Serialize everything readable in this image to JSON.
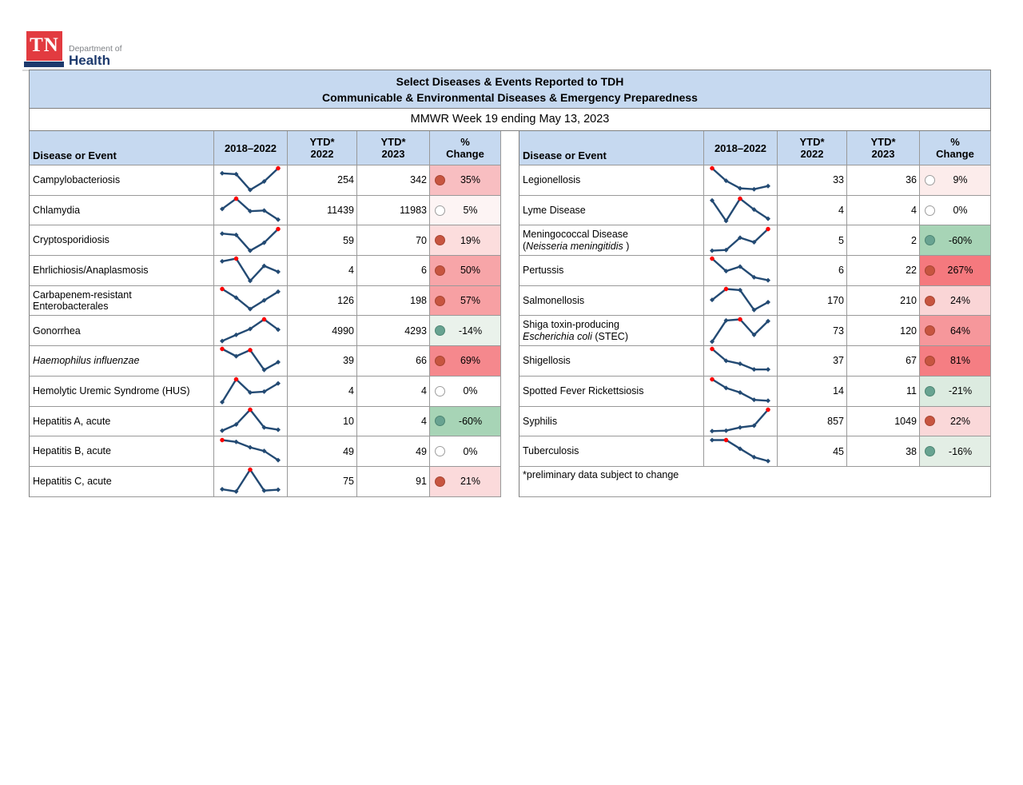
{
  "logo": {
    "tn": "TN",
    "dept": "Department of",
    "health": "Health"
  },
  "header": {
    "title_line1": "Select Diseases & Events Reported to TDH",
    "title_line2": "Communicable & Environmental Diseases & Emergency Preparedness",
    "subtitle": "MMWR Week 19 ending May 13, 2023"
  },
  "columns": {
    "disease": "Disease or Event",
    "trend": "2018–2022",
    "ytd22a": "YTD*",
    "ytd22b": "2022",
    "ytd23a": "YTD*",
    "ytd23b": "2023",
    "chga": "%",
    "chgb": "Change"
  },
  "footnote": "*preliminary data subject to change",
  "colors": {
    "header_bg": "#c6d9f0",
    "spark_line": "#234a73",
    "spark_peak": "#ff0000",
    "up_fill": "#c75540",
    "up_border": "#a84532",
    "down_fill": "#68a391",
    "down_border": "#4d8673",
    "none_fill": "#ffffff",
    "none_border": "#9e9e9e"
  },
  "tables": {
    "left": {
      "rows": [
        {
          "name": [
            [
              {
                "t": "Campylobacteriosis"
              }
            ]
          ],
          "trend": {
            "points": [
              0.78,
              0.74,
              0.05,
              0.42,
              1
            ],
            "peaks": [
              4
            ]
          },
          "ytd2022": "254",
          "ytd2023": "342",
          "change": {
            "label": "35%",
            "dir": "up",
            "bg": "#f8bec1"
          }
        },
        {
          "name": [
            [
              {
                "t": "Chlamydia"
              }
            ]
          ],
          "trend": {
            "points": [
              0.55,
              1,
              0.45,
              0.48,
              0.08
            ],
            "peaks": [
              1
            ]
          },
          "ytd2022": "11439",
          "ytd2023": "11983",
          "change": {
            "label": "5%",
            "dir": "none",
            "bg": "#fdf4f4"
          }
        },
        {
          "name": [
            [
              {
                "t": "Cryptosporidiosis"
              }
            ]
          ],
          "trend": {
            "points": [
              0.8,
              0.74,
              0.05,
              0.4,
              1
            ],
            "peaks": [
              4
            ]
          },
          "ytd2022": "59",
          "ytd2023": "70",
          "change": {
            "label": "19%",
            "dir": "up",
            "bg": "#fcdddd"
          }
        },
        {
          "name": [
            [
              {
                "t": "Ehrlichiosis/Anaplasmosis"
              }
            ]
          ],
          "trend": {
            "points": [
              0.88,
              1,
              0.02,
              0.68,
              0.42
            ],
            "peaks": [
              1
            ]
          },
          "ytd2022": "4",
          "ytd2023": "6",
          "change": {
            "label": "50%",
            "dir": "up",
            "bg": "#f7a5a8"
          }
        },
        {
          "name": [
            [
              {
                "t": "Carbapenem-resistant"
              }
            ],
            [
              {
                "t": "Enterobacterales"
              }
            ]
          ],
          "trend": {
            "points": [
              1,
              0.62,
              0.12,
              0.5,
              0.88
            ],
            "peaks": [
              0
            ]
          },
          "ytd2022": "126",
          "ytd2023": "198",
          "change": {
            "label": "57%",
            "dir": "up",
            "bg": "#f7a0a3"
          }
        },
        {
          "name": [
            [
              {
                "t": "Gonorrhea"
              }
            ]
          ],
          "trend": {
            "points": [
              0.05,
              0.32,
              0.58,
              1,
              0.55
            ],
            "peaks": [
              3
            ]
          },
          "ytd2022": "4990",
          "ytd2023": "4293",
          "change": {
            "label": "-14%",
            "dir": "down",
            "bg": "#eaf2eb"
          }
        },
        {
          "name": [
            [
              {
                "t": "Haemophilus influenzae",
                "i": true
              }
            ]
          ],
          "trend": {
            "points": [
              1,
              0.68,
              0.95,
              0.08,
              0.42
            ],
            "peaks": [
              0,
              2
            ]
          },
          "ytd2022": "39",
          "ytd2023": "66",
          "change": {
            "label": "69%",
            "dir": "up",
            "bg": "#f5888d"
          }
        },
        {
          "name": [
            [
              {
                "t": "Hemolytic Uremic Syndrome (HUS)"
              }
            ]
          ],
          "trend": {
            "points": [
              0,
              1,
              0.42,
              0.46,
              0.82
            ],
            "peaks": [
              1
            ]
          },
          "ytd2022": "4",
          "ytd2023": "4",
          "change": {
            "label": "0%",
            "dir": "none",
            "bg": "#ffffff"
          }
        },
        {
          "name": [
            [
              {
                "t": "Hepatitis A, acute"
              }
            ]
          ],
          "trend": {
            "points": [
              0.08,
              0.35,
              1,
              0.22,
              0.12
            ],
            "peaks": [
              2
            ]
          },
          "ytd2022": "10",
          "ytd2023": "4",
          "change": {
            "label": "-60%",
            "dir": "down",
            "bg": "#a7d4b6"
          }
        },
        {
          "name": [
            [
              {
                "t": "Hepatitis B, acute"
              }
            ]
          ],
          "trend": {
            "points": [
              1,
              0.92,
              0.68,
              0.52,
              0.12
            ],
            "peaks": [
              0
            ]
          },
          "ytd2022": "49",
          "ytd2023": "49",
          "change": {
            "label": "0%",
            "dir": "none",
            "bg": "#ffffff"
          }
        },
        {
          "name": [
            [
              {
                "t": "Hepatitis C, acute"
              }
            ]
          ],
          "trend": {
            "points": [
              0.14,
              0.04,
              1,
              0.08,
              0.12
            ],
            "peaks": [
              2
            ]
          },
          "ytd2022": "75",
          "ytd2023": "91",
          "change": {
            "label": "21%",
            "dir": "up",
            "bg": "#fbdadb"
          }
        }
      ]
    },
    "right": {
      "rows": [
        {
          "name": [
            [
              {
                "t": "Legionellosis"
              }
            ]
          ],
          "trend": {
            "points": [
              1,
              0.45,
              0.12,
              0.08,
              0.22
            ],
            "peaks": [
              0
            ]
          },
          "ytd2022": "33",
          "ytd2023": "36",
          "change": {
            "label": "9%",
            "dir": "none",
            "bg": "#fceceb"
          }
        },
        {
          "name": [
            [
              {
                "t": "Lyme Disease"
              }
            ]
          ],
          "trend": {
            "points": [
              0.92,
              0.02,
              1,
              0.52,
              0.12
            ],
            "peaks": [
              2
            ]
          },
          "ytd2022": "4",
          "ytd2023": "4",
          "change": {
            "label": "0%",
            "dir": "none",
            "bg": "#ffffff"
          }
        },
        {
          "name": [
            [
              {
                "t": "Meningococcal Disease"
              }
            ],
            [
              {
                "t": "("
              },
              {
                "t": "Neisseria meningitidis",
                "i": true
              },
              {
                "t": " )"
              }
            ]
          ],
          "trend": {
            "points": [
              0.05,
              0.08,
              0.62,
              0.42,
              1
            ],
            "peaks": [
              4
            ]
          },
          "ytd2022": "5",
          "ytd2023": "2",
          "change": {
            "label": "-60%",
            "dir": "down",
            "bg": "#a7d4b6"
          }
        },
        {
          "name": [
            [
              {
                "t": "Pertussis"
              }
            ]
          ],
          "trend": {
            "points": [
              1,
              0.45,
              0.65,
              0.18,
              0.05
            ],
            "peaks": [
              0
            ]
          },
          "ytd2022": "6",
          "ytd2023": "22",
          "change": {
            "label": "267%",
            "dir": "up",
            "bg": "#f5797e"
          }
        },
        {
          "name": [
            [
              {
                "t": "Salmonellosis"
              }
            ]
          ],
          "trend": {
            "points": [
              0.52,
              1,
              0.95,
              0.08,
              0.42
            ],
            "peaks": [
              1
            ]
          },
          "ytd2022": "170",
          "ytd2023": "210",
          "change": {
            "label": "24%",
            "dir": "up",
            "bg": "#fad5d6"
          }
        },
        {
          "name": [
            [
              {
                "t": "Shiga toxin-producing"
              }
            ],
            [
              {
                "t": "Escherichia coli",
                "i": true
              },
              {
                "t": " (STEC)"
              }
            ]
          ],
          "trend": {
            "points": [
              0.02,
              0.95,
              1,
              0.32,
              0.92
            ],
            "peaks": [
              2
            ]
          },
          "ytd2022": "73",
          "ytd2023": "120",
          "change": {
            "label": "64%",
            "dir": "up",
            "bg": "#f6979b"
          }
        },
        {
          "name": [
            [
              {
                "t": "Shigellosis"
              }
            ]
          ],
          "trend": {
            "points": [
              1,
              0.48,
              0.35,
              0.1,
              0.1
            ],
            "peaks": [
              0
            ]
          },
          "ytd2022": "37",
          "ytd2023": "67",
          "change": {
            "label": "81%",
            "dir": "up",
            "bg": "#f57e83"
          }
        },
        {
          "name": [
            [
              {
                "t": "Spotted Fever Rickettsiosis"
              }
            ]
          ],
          "trend": {
            "points": [
              1,
              0.62,
              0.42,
              0.1,
              0.06
            ],
            "peaks": [
              0
            ]
          },
          "ytd2022": "14",
          "ytd2023": "11",
          "change": {
            "label": "-21%",
            "dir": "down",
            "bg": "#dcebe0"
          }
        },
        {
          "name": [
            [
              {
                "t": "Syphilis"
              }
            ]
          ],
          "trend": {
            "points": [
              0.06,
              0.08,
              0.22,
              0.3,
              1
            ],
            "peaks": [
              4
            ]
          },
          "ytd2022": "857",
          "ytd2023": "1049",
          "change": {
            "label": "22%",
            "dir": "up",
            "bg": "#fad8d9"
          }
        },
        {
          "name": [
            [
              {
                "t": "Tuberculosis"
              }
            ]
          ],
          "trend": {
            "points": [
              1,
              1,
              0.62,
              0.25,
              0.08
            ],
            "peaks": [
              1
            ]
          },
          "ytd2022": "45",
          "ytd2023": "38",
          "change": {
            "label": "-16%",
            "dir": "down",
            "bg": "#e3eee5"
          }
        }
      ]
    }
  }
}
